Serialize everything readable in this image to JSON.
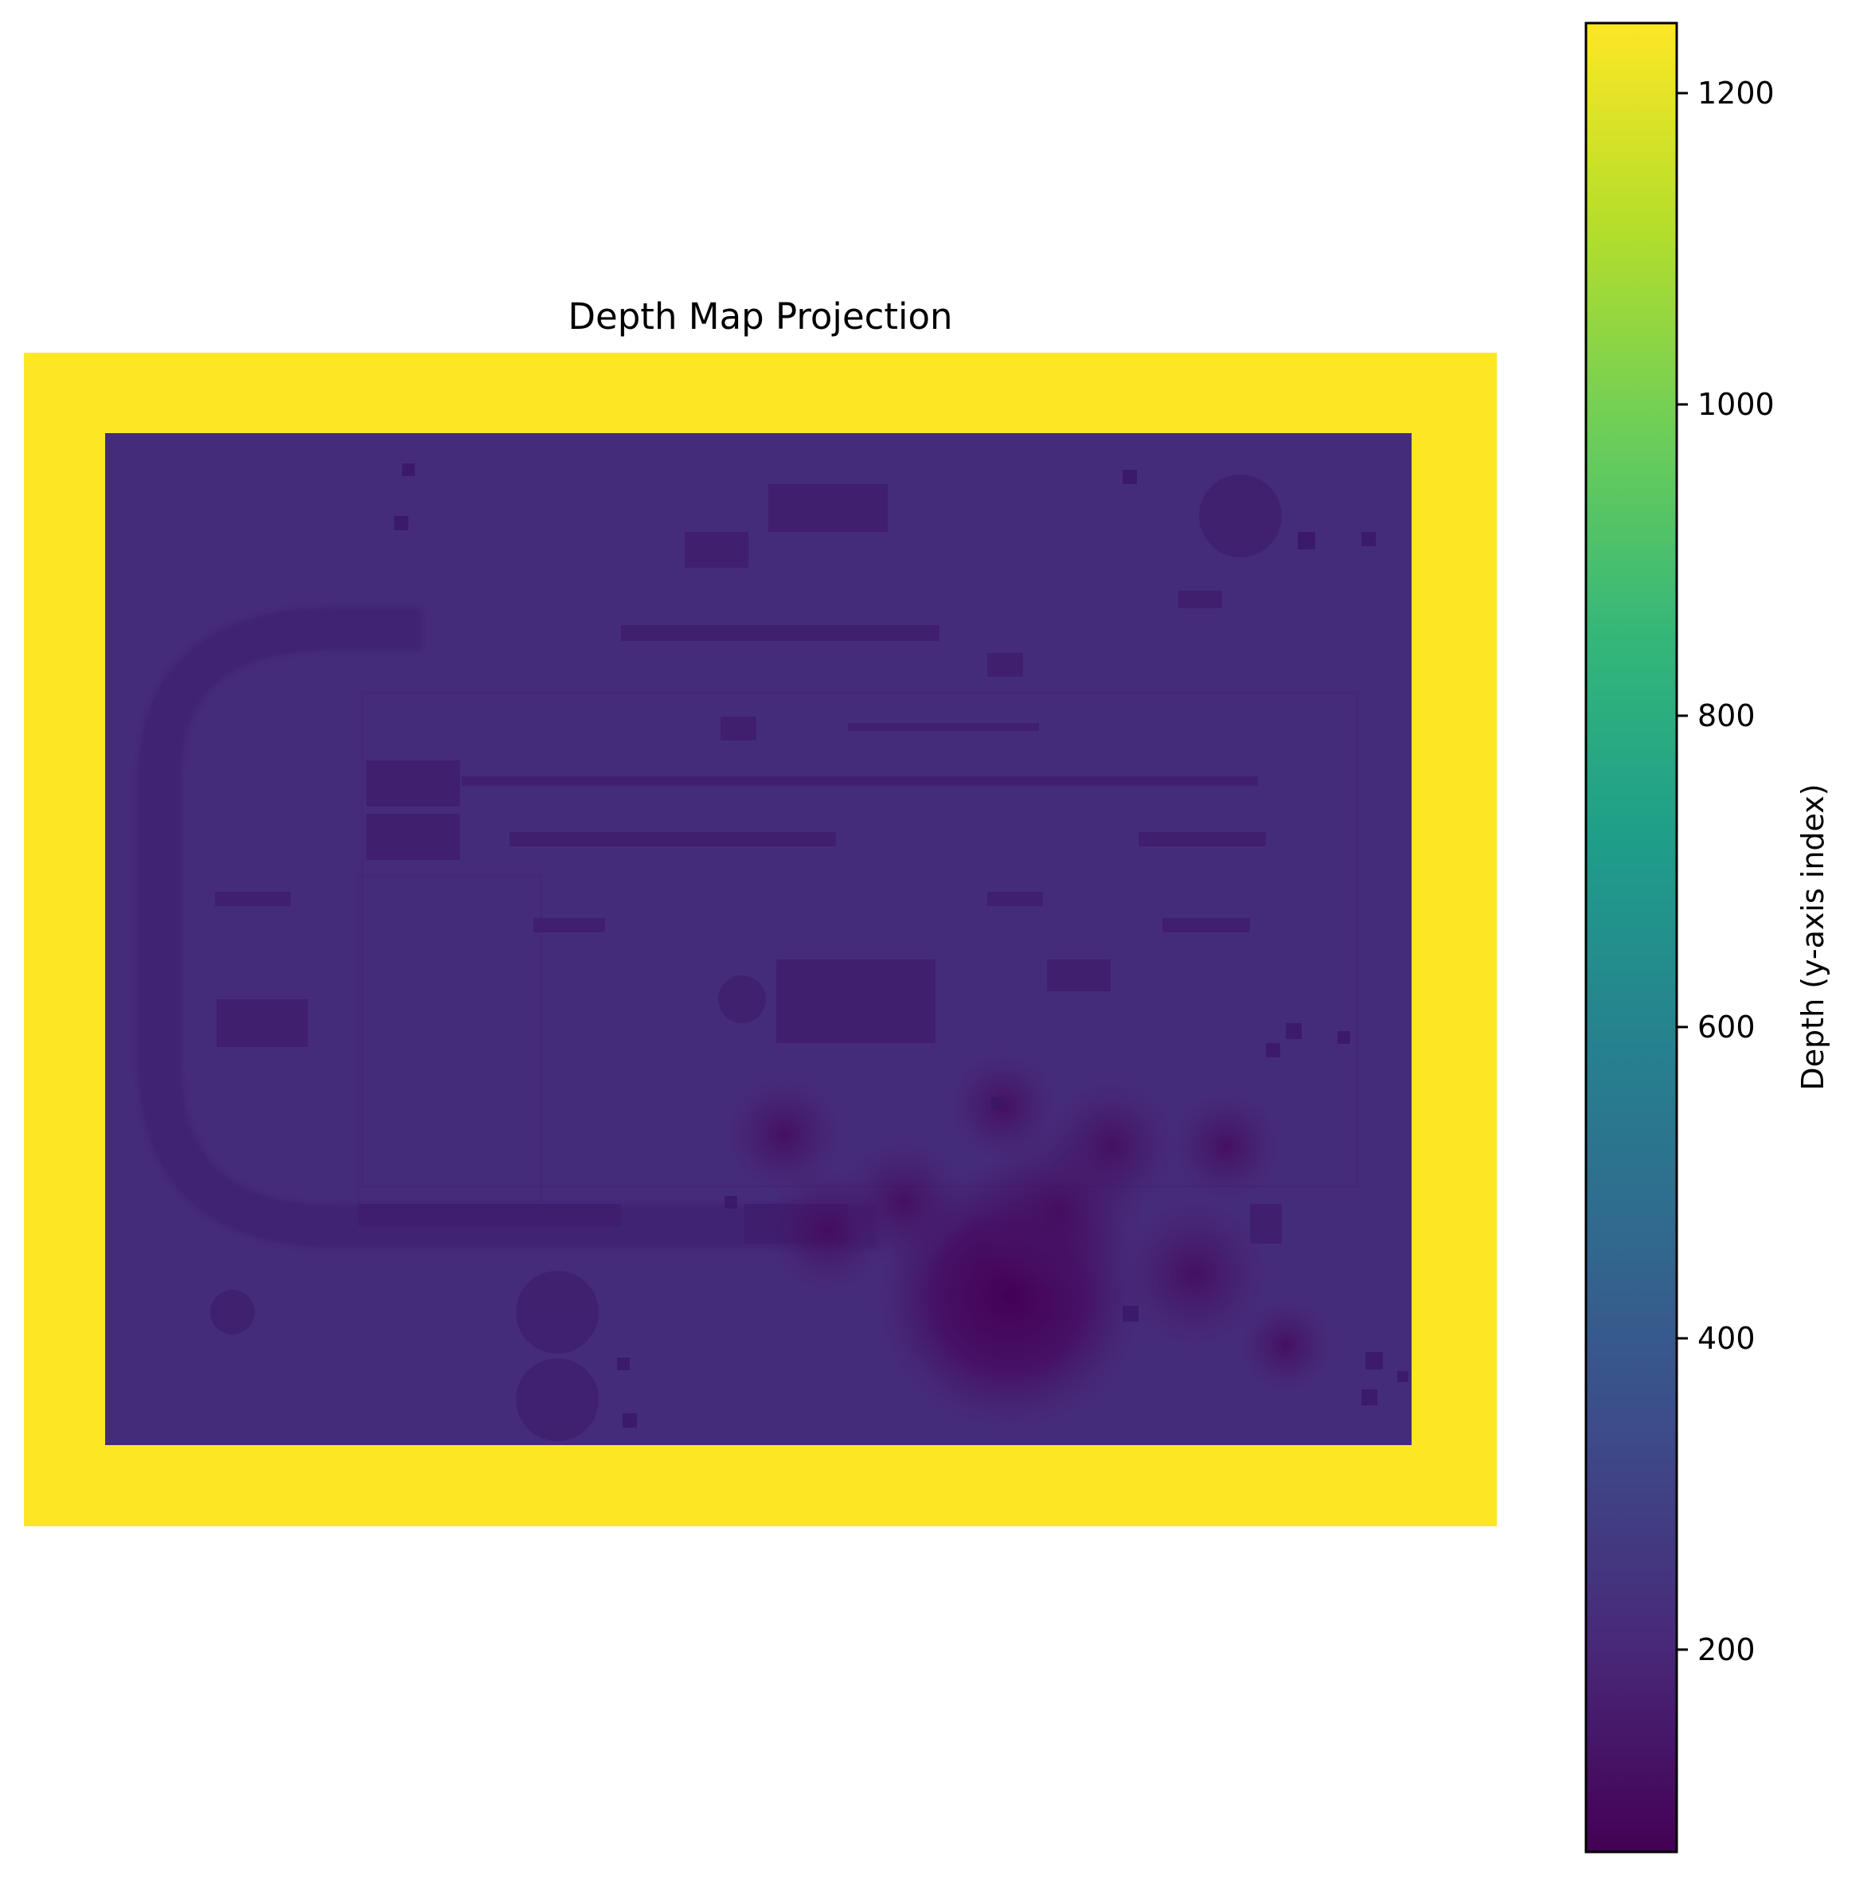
{
  "chart_data": {
    "type": "heatmap",
    "title": "Depth Map Projection",
    "xlabel": "",
    "ylabel": "",
    "axes_visible": false,
    "colormap": "viridis",
    "colormap_stops": [
      "#440154",
      "#482878",
      "#3e4989",
      "#31688e",
      "#26828e",
      "#1f9e89",
      "#35b779",
      "#6ece58",
      "#b5de2b",
      "#fde725"
    ],
    "colorbar": {
      "label": "Depth (y-axis index)",
      "range": [
        70,
        1245
      ],
      "ticks": [
        200,
        400,
        600,
        800,
        1000,
        1200
      ]
    },
    "regions": {
      "border_value": 1245,
      "interior_background_value": 250,
      "dark_blob_values": [
        70,
        140,
        160,
        170,
        180,
        190
      ]
    }
  }
}
